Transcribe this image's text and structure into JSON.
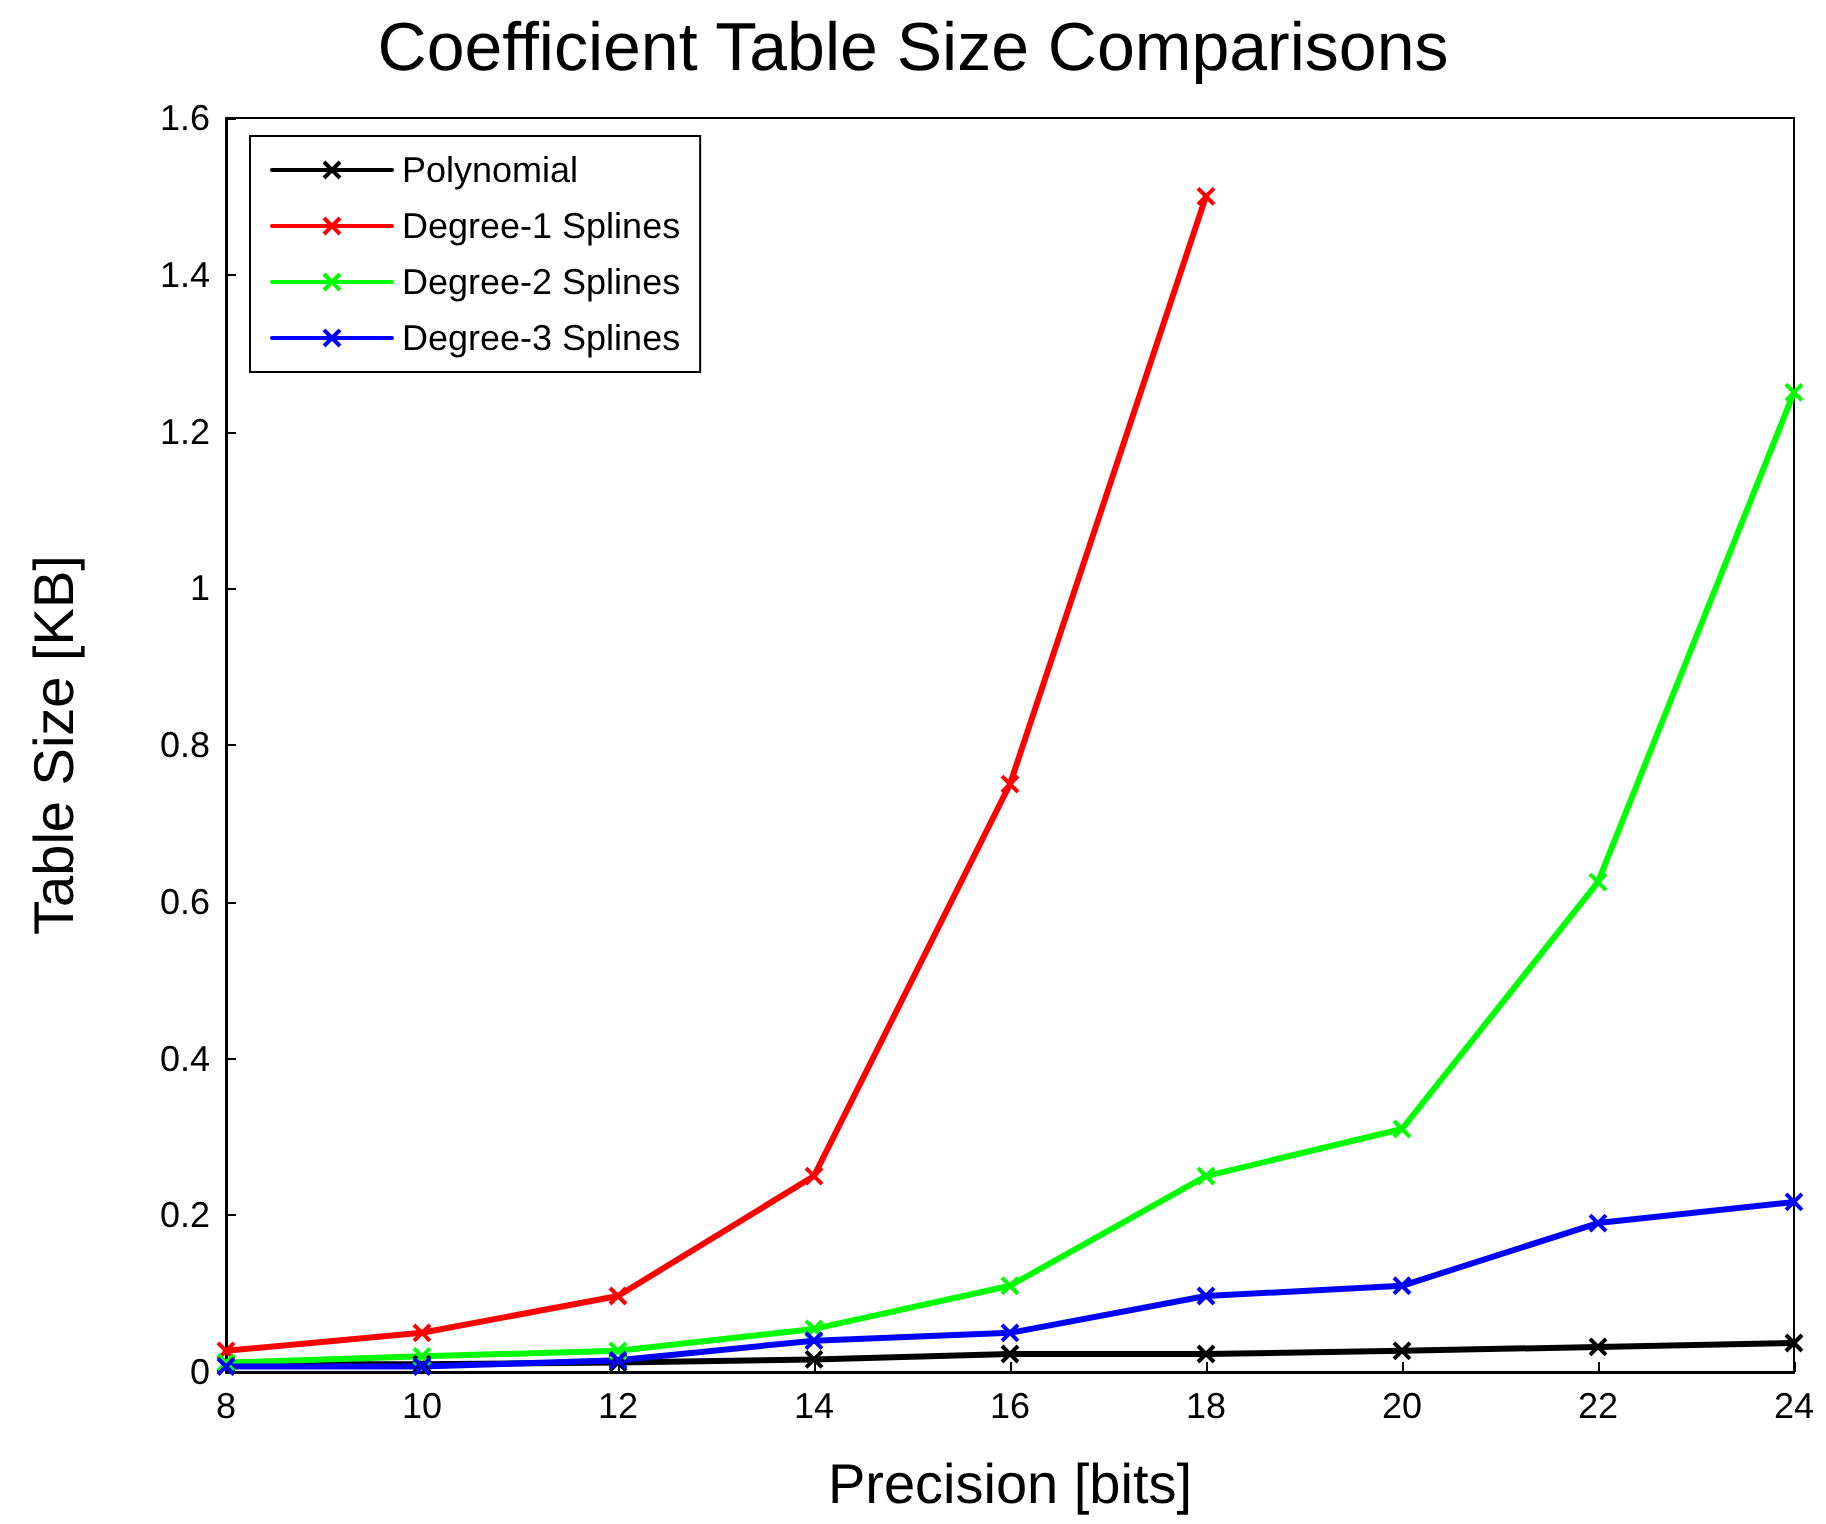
{
  "chart_data": {
    "type": "line",
    "title": "Coefficient Table Size Comparisons",
    "xlabel": "Precision [bits]",
    "ylabel": "Table Size [KB]",
    "x": [
      8,
      10,
      12,
      14,
      16,
      18,
      20,
      22,
      24
    ],
    "series": [
      {
        "name": "Polynomial",
        "color": "#000000",
        "values": [
          0.01,
          0.01,
          0.012,
          0.016,
          0.023,
          0.023,
          0.027,
          0.032,
          0.037
        ]
      },
      {
        "name": "Degree-1 Splines",
        "color": "#ff0000",
        "values": [
          0.027,
          0.05,
          0.097,
          0.25,
          0.75,
          1.5,
          null,
          null,
          null
        ]
      },
      {
        "name": "Degree-2 Splines",
        "color": "#00ff00",
        "values": [
          0.012,
          0.02,
          0.027,
          0.055,
          0.11,
          0.25,
          0.31,
          0.625,
          1.25
        ]
      },
      {
        "name": "Degree-3 Splines",
        "color": "#0000ff",
        "values": [
          0.007,
          0.007,
          0.015,
          0.04,
          0.05,
          0.097,
          0.11,
          0.19,
          0.217
        ]
      }
    ],
    "xlim": [
      8,
      24
    ],
    "xticks": [
      8,
      10,
      12,
      14,
      16,
      18,
      20,
      22,
      24
    ],
    "ylim": [
      0,
      1.6
    ],
    "yticks": [
      0,
      0.2,
      0.4,
      0.6,
      0.8,
      1,
      1.2,
      1.4,
      1.6
    ],
    "grid": false,
    "legend": "top left",
    "marker": "cross",
    "line_style": "solid"
  }
}
